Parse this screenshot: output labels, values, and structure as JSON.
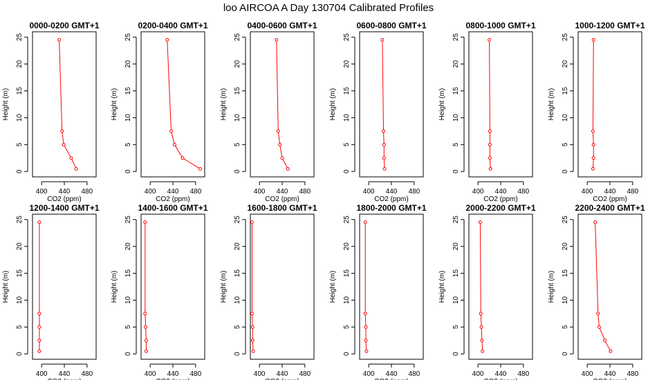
{
  "title": "loo AIRCOA A  Day 130704  Calibrated Profiles",
  "chart_data": {
    "type": "line",
    "title": "loo AIRCOA A  Day 130704  Calibrated Profiles",
    "xlabel": "CO2 (ppm)",
    "ylabel": "Height (m)",
    "xlim": [
      384,
      496
    ],
    "ylim": [
      -1,
      26
    ],
    "x_ticks": [
      400,
      440,
      480
    ],
    "y_ticks": [
      0,
      5,
      10,
      15,
      20,
      25
    ],
    "grid": false,
    "line_color": "#ff0000",
    "marker": "open-circle",
    "heights": [
      0.5,
      2.5,
      5,
      7.5,
      24.5
    ],
    "panels": [
      {
        "name": "0000-0200 GMT+1",
        "co2": [
          461,
          452,
          439,
          436,
          431
        ]
      },
      {
        "name": "0200-0400 GMT+1",
        "co2": [
          488,
          457,
          443,
          437,
          430
        ]
      },
      {
        "name": "0400-0600 GMT+1",
        "co2": [
          450,
          440,
          436,
          433,
          430
        ]
      },
      {
        "name": "0600-0800 GMT+1",
        "co2": [
          428,
          427,
          427,
          426,
          424
        ]
      },
      {
        "name": "0800-1000 GMT+1",
        "co2": [
          422,
          421,
          421,
          421,
          420
        ]
      },
      {
        "name": "1000-1200 GMT+1",
        "co2": [
          410,
          411,
          411,
          410,
          411
        ]
      },
      {
        "name": "1200-1400 GMT+1",
        "co2": [
          396,
          396,
          396,
          396,
          396
        ]
      },
      {
        "name": "1400-1600 GMT+1",
        "co2": [
          393,
          393,
          392,
          391,
          391
        ]
      },
      {
        "name": "1600-1800 GMT+1",
        "co2": [
          389,
          388,
          388,
          387,
          387
        ]
      },
      {
        "name": "1800-2000 GMT+1",
        "co2": [
          396,
          395,
          395,
          394,
          394
        ]
      },
      {
        "name": "2000-2200 GMT+1",
        "co2": [
          408,
          407,
          406,
          405,
          404
        ]
      },
      {
        "name": "2200-2400 GMT+1",
        "co2": [
          441,
          431,
          421,
          419,
          414
        ]
      }
    ]
  }
}
